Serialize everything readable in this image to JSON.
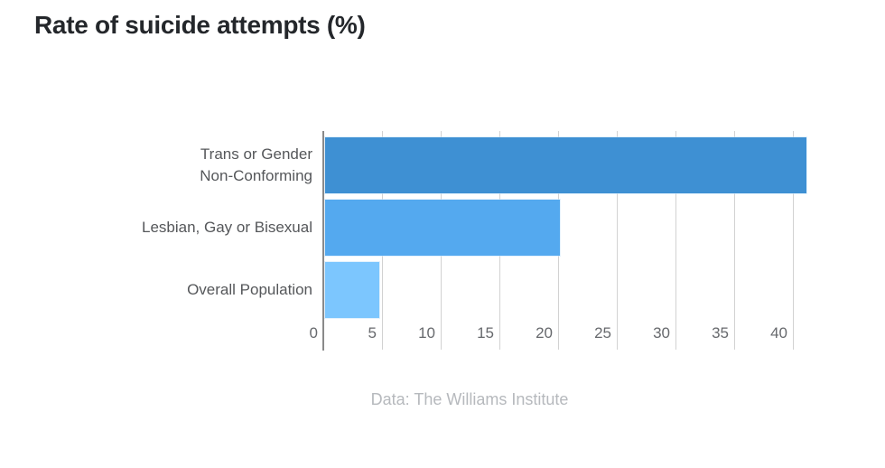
{
  "chart_data": {
    "type": "bar",
    "orientation": "horizontal",
    "title": "Rate of suicide attempts (%)",
    "caption": "Data: The Williams Institute",
    "categories": [
      "Trans or Gender Non-Conforming",
      "Lesbian, Gay or Bisexual",
      "Overall Population"
    ],
    "label_lines": [
      [
        "Trans or Gender",
        "Non-Conforming"
      ],
      [
        "Lesbian, Gay or Bisexual"
      ],
      [
        "Overall Population"
      ]
    ],
    "values": [
      41,
      20,
      4.6
    ],
    "bar_colors": [
      "#3E90D3",
      "#54A9EF",
      "#7CC6FE"
    ],
    "x_ticks": [
      0,
      5,
      10,
      15,
      20,
      25,
      30,
      35,
      40
    ],
    "xlim": [
      0,
      45
    ],
    "grid": true,
    "legend": "none",
    "grid_color": "#d2d2d2",
    "axis_color": "#8a8a8a"
  }
}
